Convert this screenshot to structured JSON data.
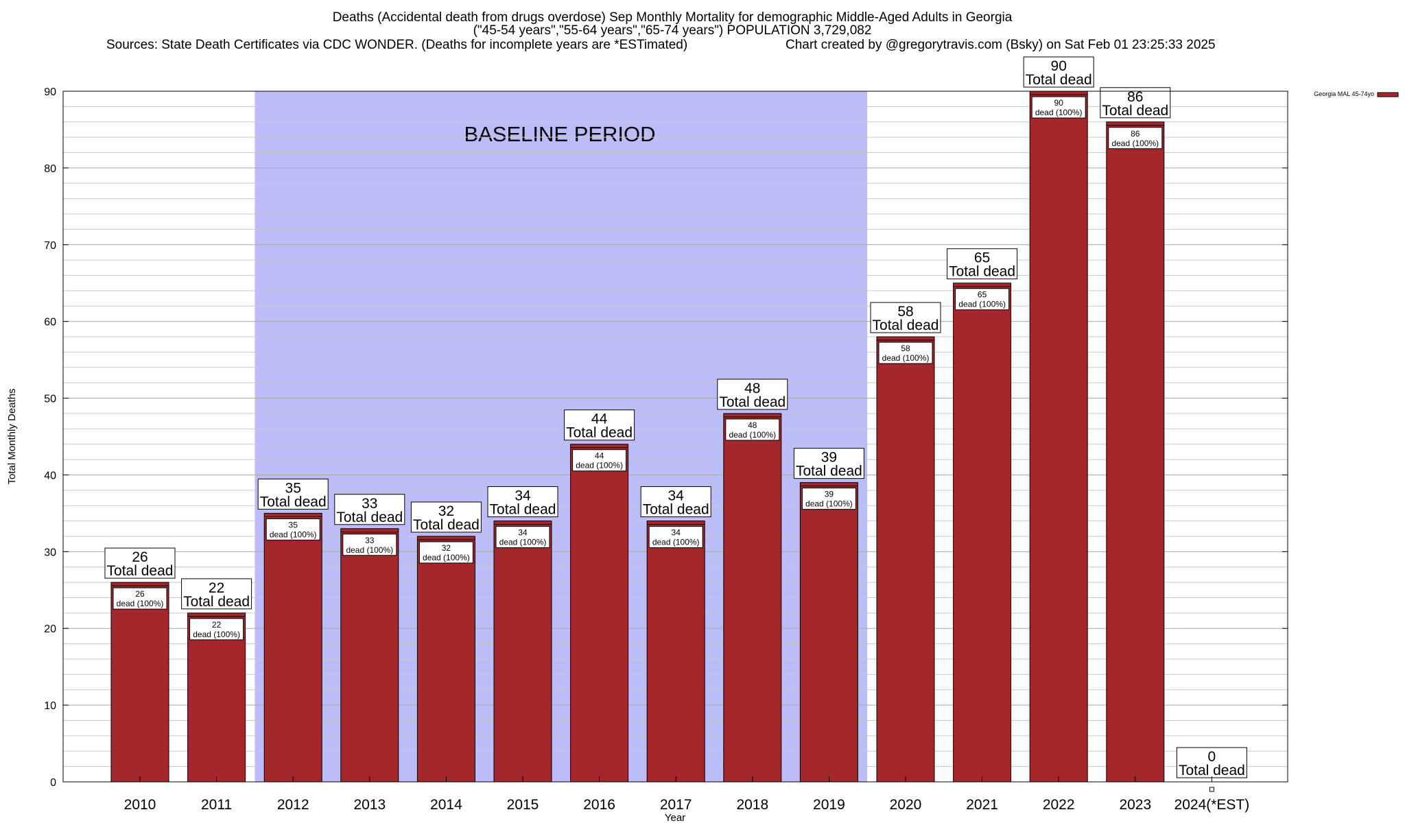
{
  "chart_data": {
    "type": "bar",
    "title_lines": [
      "Deaths (Accidental death from drugs overdose) Sep Monthly Mortality for demographic Middle-Aged Adults in Georgia",
      "(\"45-54 years\",\"55-64 years\",\"65-74 years\") POPULATION 3,729,082"
    ],
    "sources_text": "Sources: State Death Certificates via CDC WONDER. (Deaths for incomplete years are *ESTimated)",
    "credit_text": "Chart created by @gregorytravis.com (Bsky) on Sat Feb 01 23:25:33 2025",
    "xlabel": "Year",
    "ylabel": "Total Monthly Deaths",
    "ylim": [
      0,
      90
    ],
    "y_ticks": [
      0,
      10,
      20,
      30,
      40,
      50,
      60,
      70,
      80,
      90
    ],
    "categories": [
      "2010",
      "2011",
      "2012",
      "2013",
      "2014",
      "2015",
      "2016",
      "2017",
      "2018",
      "2019",
      "2020",
      "2021",
      "2022",
      "2023",
      "2024(*EST)"
    ],
    "series": [
      {
        "name": "Georgia MAL 45-74yo",
        "color": "#a4282b",
        "values": [
          26,
          22,
          35,
          33,
          32,
          34,
          44,
          34,
          48,
          39,
          58,
          65,
          90,
          86,
          0
        ]
      }
    ],
    "total_label_suffix": "Total dead",
    "inner_label_suffix": "dead (100%)",
    "baseline_period": {
      "label": "BASELINE PERIOD",
      "start_category": "2012",
      "end_category": "2019",
      "color": "#bcbcf9"
    },
    "legend": "top-right",
    "grid": true
  }
}
